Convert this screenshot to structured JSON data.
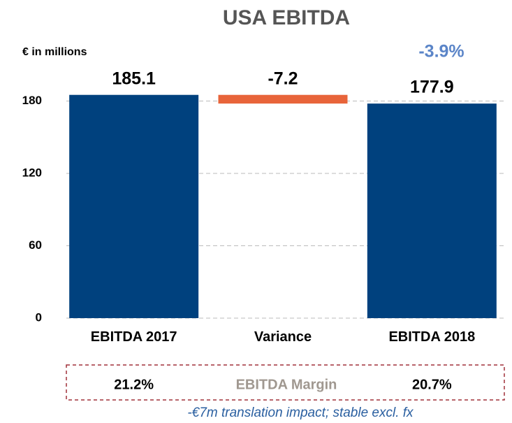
{
  "chart_data": {
    "type": "waterfall",
    "title": "USA EBITDA",
    "unit_label": "€ in millions",
    "categories": [
      "EBITDA 2017",
      "Variance",
      "EBITDA 2018"
    ],
    "values": [
      185.1,
      -7.2,
      177.9
    ],
    "bar_kinds": [
      "total",
      "delta",
      "total"
    ],
    "colors": {
      "total": "#00417e",
      "delta": "#e8643a"
    },
    "ylim": [
      0,
      190
    ],
    "yticks": [
      0,
      60,
      120,
      180
    ],
    "grid": true,
    "change_annotation": "-3.9%",
    "margin": {
      "label": "EBITDA Margin",
      "values": [
        "21.2%",
        "",
        "20.7%"
      ]
    },
    "footnote": "-€7m translation impact; stable excl. fx"
  }
}
